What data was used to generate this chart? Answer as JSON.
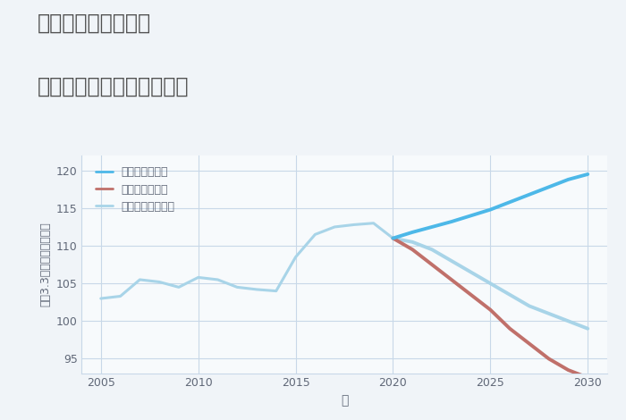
{
  "title_line1": "岐阜県関市下有知の",
  "title_line2": "中古マンションの価格推移",
  "xlabel": "年",
  "ylabel": "坪（3.3㎡）単価（万円）",
  "bg_color": "#f0f4f8",
  "plot_bg_color": "#f7fafc",
  "historical_years": [
    2005,
    2006,
    2007,
    2008,
    2009,
    2010,
    2011,
    2012,
    2013,
    2014,
    2015,
    2016,
    2017,
    2018,
    2019,
    2020
  ],
  "historical_values": [
    103.0,
    103.3,
    105.5,
    105.2,
    104.5,
    105.8,
    105.5,
    104.5,
    104.2,
    104.0,
    108.5,
    111.5,
    112.5,
    112.8,
    113.0,
    111.0
  ],
  "future_years": [
    2020,
    2021,
    2022,
    2023,
    2024,
    2025,
    2026,
    2027,
    2028,
    2029,
    2030
  ],
  "good_values": [
    111.0,
    111.8,
    112.5,
    113.2,
    114.0,
    114.8,
    115.8,
    116.8,
    117.8,
    118.8,
    119.5
  ],
  "bad_values": [
    111.0,
    109.5,
    107.5,
    105.5,
    103.5,
    101.5,
    99.0,
    97.0,
    95.0,
    93.5,
    92.5
  ],
  "normal_values": [
    111.0,
    110.5,
    109.5,
    108.0,
    106.5,
    105.0,
    103.5,
    102.0,
    101.0,
    100.0,
    99.0
  ],
  "color_good": "#4db8e8",
  "color_bad": "#c0706a",
  "color_normal": "#a8d4e8",
  "color_hist": "#a8d4e8",
  "legend_good": "グッドシナリオ",
  "legend_bad": "バッドシナリオ",
  "legend_normal": "ノーマルシナリオ",
  "ylim": [
    93,
    122
  ],
  "xlim": [
    2004,
    2031
  ],
  "yticks": [
    95,
    100,
    105,
    110,
    115,
    120
  ],
  "xticks": [
    2005,
    2010,
    2015,
    2020,
    2025,
    2030
  ],
  "grid_color": "#c8d8e8",
  "linewidth_hist": 2.2,
  "linewidth_future": 2.8,
  "title_color": "#505050",
  "axis_color": "#606878",
  "tick_color": "#606878",
  "title_fontsize": 17,
  "legend_fontsize": 9,
  "tick_fontsize": 9,
  "ylabel_fontsize": 9,
  "xlabel_fontsize": 10
}
